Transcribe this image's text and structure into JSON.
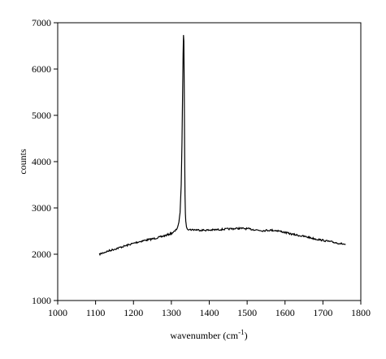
{
  "chart_data": {
    "type": "line",
    "title": "",
    "xlabel": "wavenumber (cm",
    "xlabel_superscript": "-1",
    "xlabel_suffix": ")",
    "ylabel": "counts",
    "xlim": [
      1000,
      1800
    ],
    "ylim": [
      1000,
      7000
    ],
    "xticks": [
      1000,
      1100,
      1200,
      1300,
      1400,
      1500,
      1600,
      1700,
      1800
    ],
    "yticks": [
      1000,
      2000,
      3000,
      4000,
      5000,
      6000,
      7000
    ],
    "grid": false,
    "legend": "none",
    "line_color": "#000000",
    "x": [
      1110,
      1130,
      1150,
      1170,
      1190,
      1210,
      1230,
      1250,
      1270,
      1290,
      1300,
      1310,
      1315,
      1320,
      1323,
      1326,
      1328,
      1330,
      1331,
      1332,
      1333,
      1334,
      1335,
      1336,
      1337,
      1338,
      1340,
      1342,
      1345,
      1350,
      1360,
      1380,
      1400,
      1420,
      1440,
      1460,
      1480,
      1500,
      1520,
      1540,
      1560,
      1580,
      1600,
      1620,
      1640,
      1660,
      1680,
      1700,
      1720,
      1740,
      1760
    ],
    "y": [
      2000,
      2060,
      2110,
      2160,
      2210,
      2260,
      2300,
      2330,
      2370,
      2420,
      2450,
      2500,
      2560,
      2680,
      2900,
      3500,
      4400,
      5700,
      6350,
      6720,
      6600,
      5600,
      4300,
      3300,
      2900,
      2700,
      2600,
      2560,
      2540,
      2530,
      2530,
      2520,
      2520,
      2530,
      2540,
      2550,
      2560,
      2550,
      2530,
      2510,
      2520,
      2510,
      2470,
      2430,
      2400,
      2370,
      2330,
      2300,
      2270,
      2240,
      2210
    ]
  }
}
